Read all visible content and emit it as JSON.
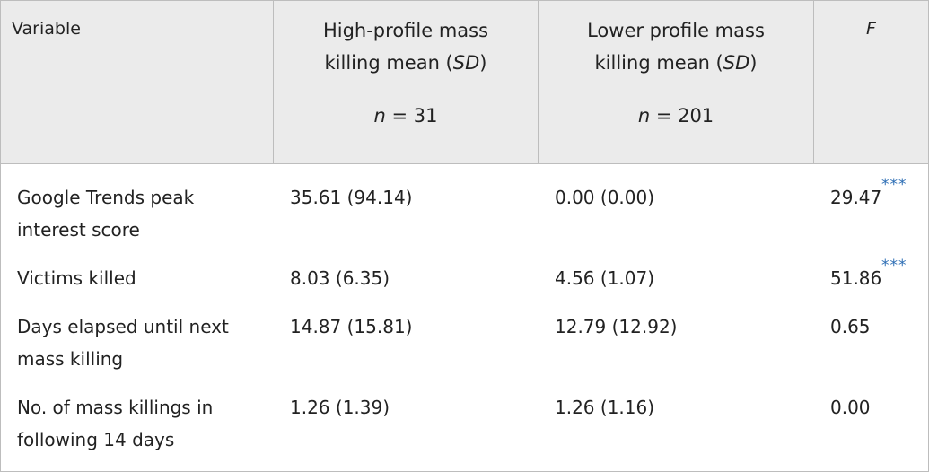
{
  "header": {
    "variable": "Variable",
    "high_line1": "High-profile mass",
    "high_line2_pre": "killing mean (",
    "high_sd": "SD",
    "high_line2_post": ")",
    "high_n_var": "n",
    "high_n_val": " = 31",
    "low_line1": "Lower profile mass",
    "low_line2_pre": "killing mean (",
    "low_sd": "SD",
    "low_line2_post": ")",
    "low_n_var": "n",
    "low_n_val": " = 201",
    "f": "F"
  },
  "rows": [
    {
      "label_line1": "Google Trends peak",
      "label_line2": "interest score",
      "high": "35.61 (94.14)",
      "low": "0.00 (0.00)",
      "f": "29.47",
      "sig": "***"
    },
    {
      "label_line1": "Victims killed",
      "label_line2": "",
      "high": "8.03 (6.35)",
      "low": "4.56 (1.07)",
      "f": "51.86",
      "sig": "***"
    },
    {
      "label_line1": "Days elapsed until next",
      "label_line2": "mass killing",
      "high": "14.87 (15.81)",
      "low": "12.79 (12.92)",
      "f": "0.65",
      "sig": ""
    },
    {
      "label_line1": "No. of mass killings in",
      "label_line2": "following 14 days",
      "high": "1.26 (1.39)",
      "low": "1.26 (1.16)",
      "f": "0.00",
      "sig": ""
    }
  ],
  "colors": {
    "header_bg": "#ebebeb",
    "border": "#bdbdbd",
    "significance": "#2c6db4",
    "text": "#222222"
  }
}
